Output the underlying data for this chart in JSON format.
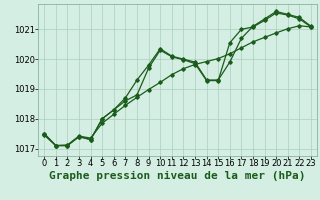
{
  "title": "Graphe pression niveau de la mer (hPa)",
  "hours": [
    0,
    1,
    2,
    3,
    4,
    5,
    6,
    7,
    8,
    9,
    10,
    11,
    12,
    13,
    14,
    15,
    16,
    17,
    18,
    19,
    20,
    21,
    22,
    23
  ],
  "line1": [
    1017.5,
    1017.1,
    1017.1,
    1017.4,
    1017.3,
    1018.0,
    1018.3,
    1018.7,
    1019.3,
    1019.8,
    1020.35,
    1020.1,
    1020.0,
    1019.9,
    1019.3,
    1019.3,
    1019.9,
    1020.7,
    1021.1,
    1021.35,
    1021.6,
    1021.5,
    1021.4,
    1021.1
  ],
  "line2": [
    1017.45,
    1017.1,
    1017.12,
    1017.42,
    1017.35,
    1017.85,
    1018.15,
    1018.45,
    1018.72,
    1018.98,
    1019.22,
    1019.48,
    1019.68,
    1019.82,
    1019.92,
    1020.02,
    1020.18,
    1020.38,
    1020.58,
    1020.73,
    1020.88,
    1021.02,
    1021.12,
    1021.08
  ],
  "line3": [
    1017.5,
    1017.1,
    1017.1,
    1017.4,
    1017.3,
    1018.0,
    1018.3,
    1018.6,
    1018.8,
    1019.7,
    1020.3,
    1020.08,
    1019.98,
    1019.85,
    1019.28,
    1019.28,
    1020.55,
    1021.0,
    1021.08,
    1021.3,
    1021.55,
    1021.48,
    1021.35,
    1021.08
  ],
  "bg_color": "#d5eee3",
  "grid_color": "#aacfbe",
  "line_color": "#1a5c1a",
  "ylim": [
    1016.75,
    1021.85
  ],
  "yticks": [
    1017,
    1018,
    1019,
    1020,
    1021
  ],
  "title_fontsize": 8,
  "tick_fontsize": 6
}
